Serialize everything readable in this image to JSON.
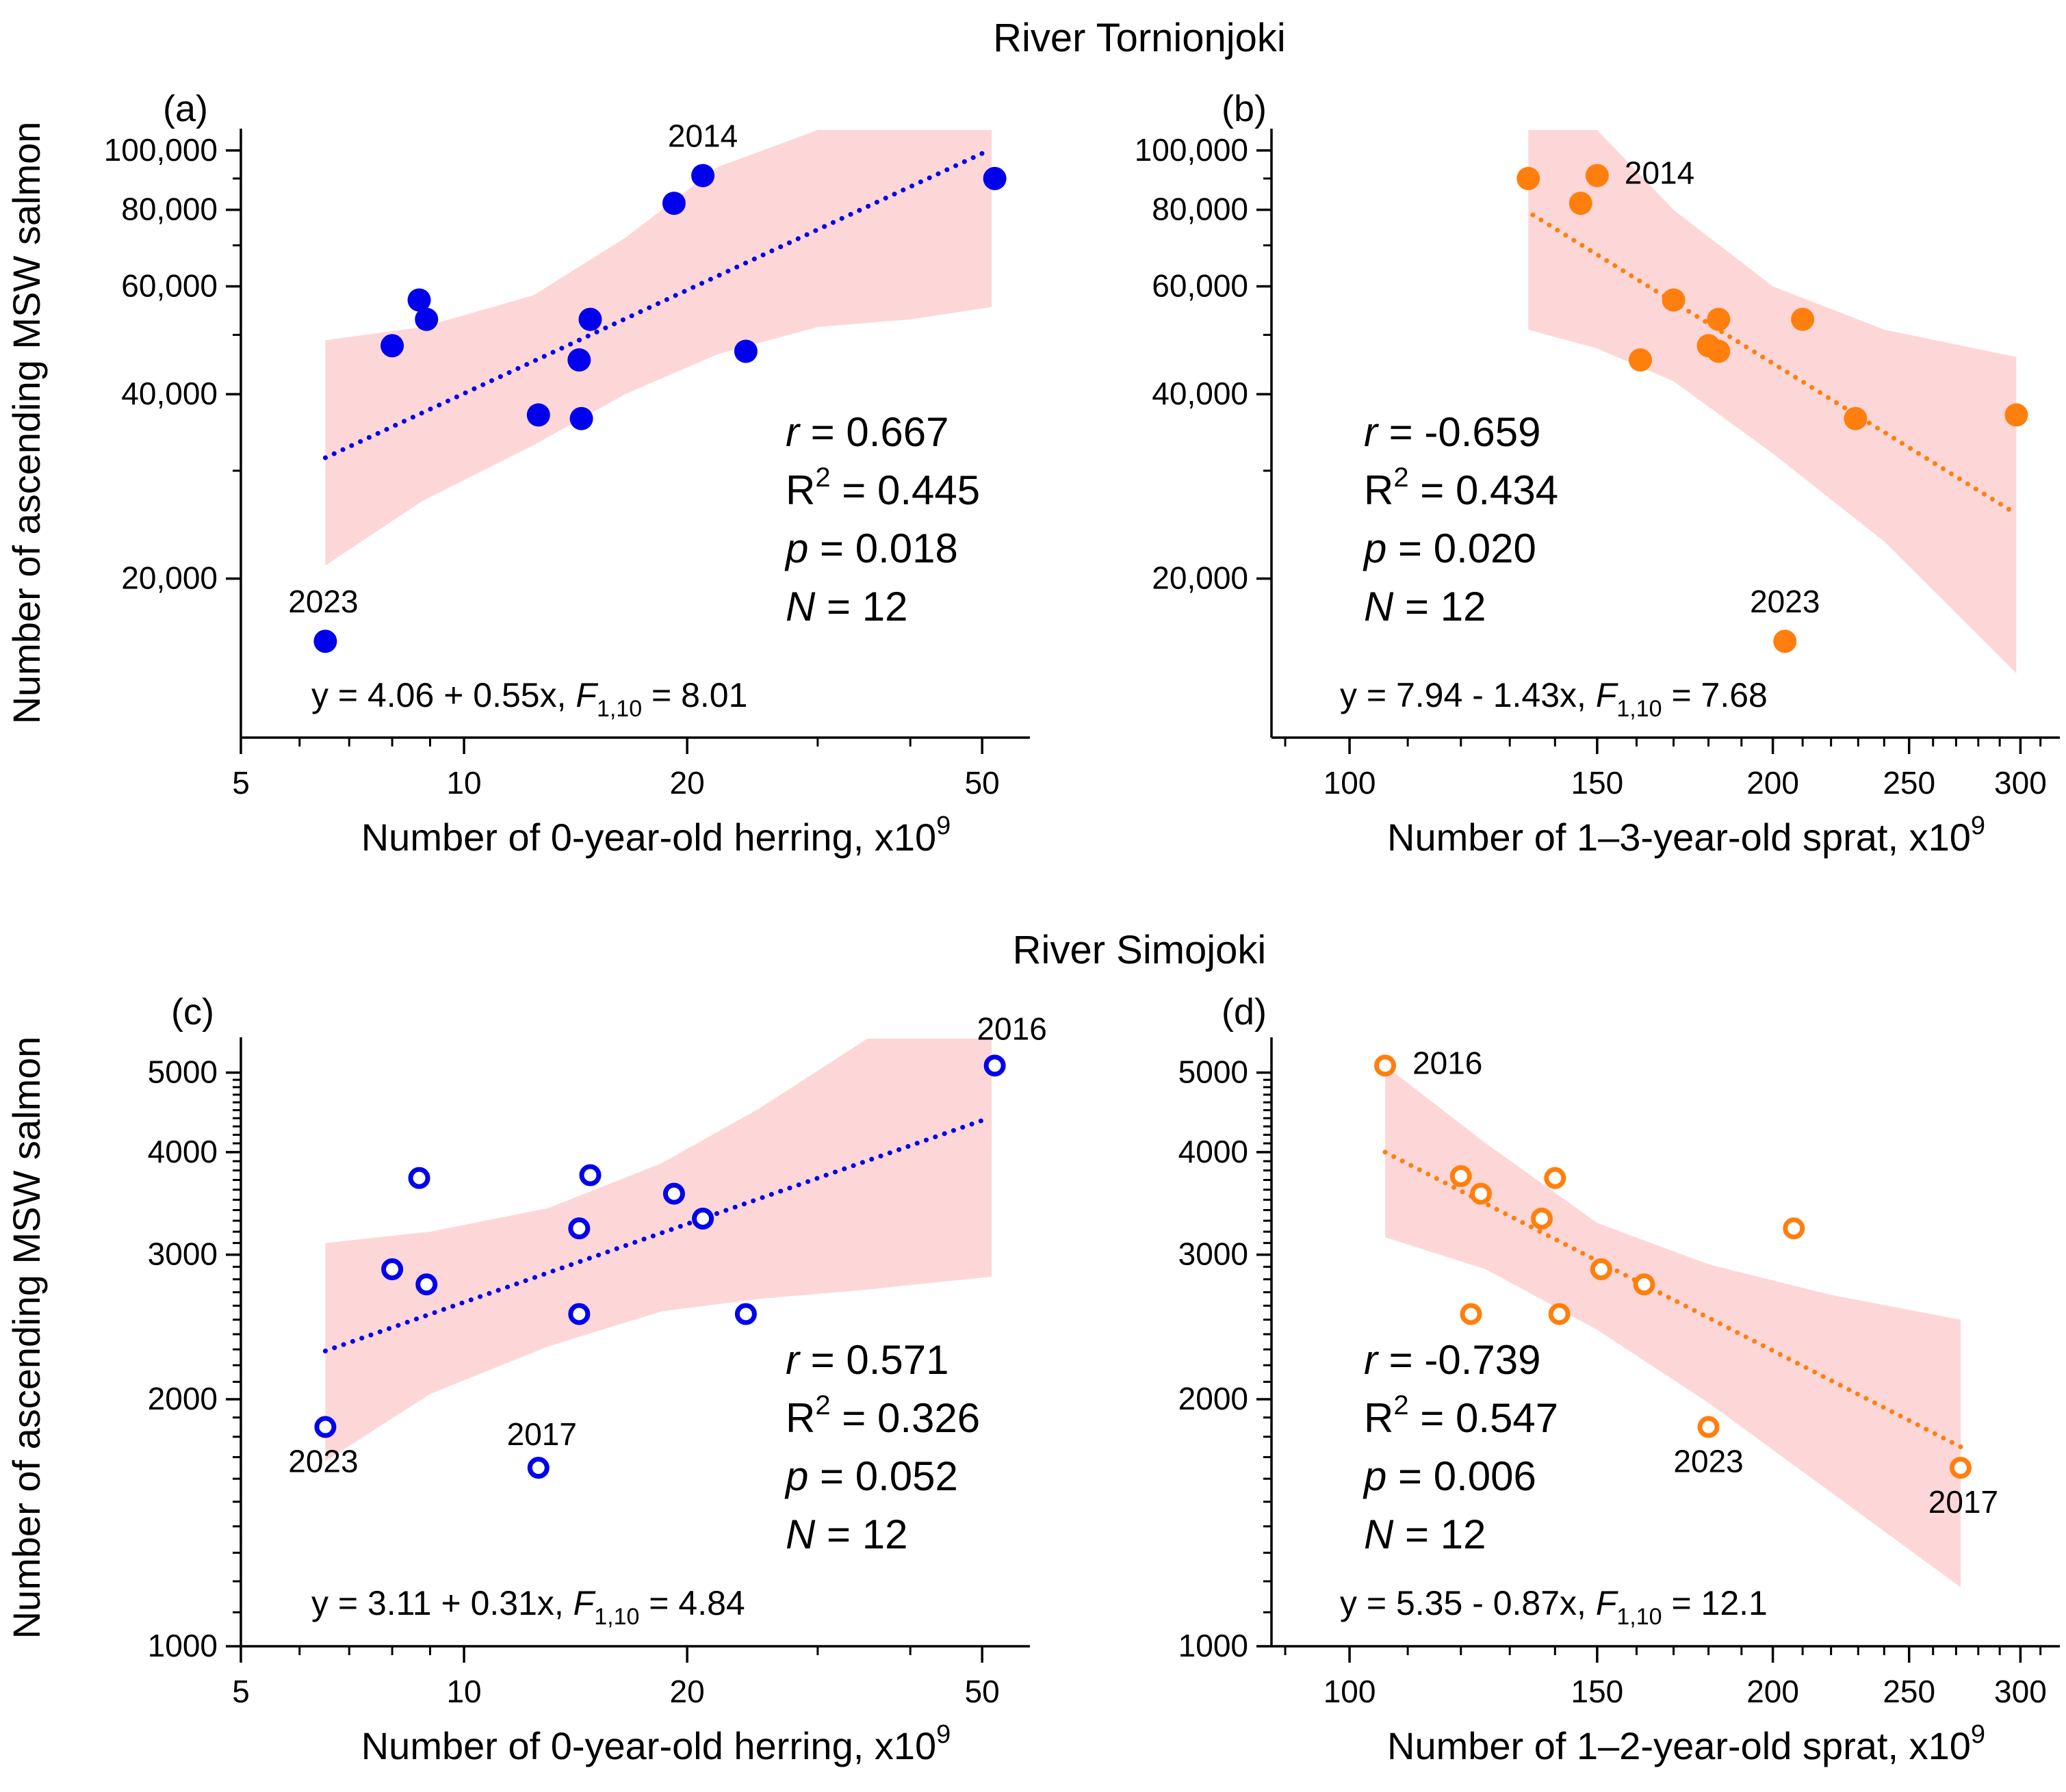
{
  "figure": {
    "title_top": "River Tornionjoki",
    "title_bottom": "River Simojoki",
    "ylabel_top": "Number of ascending MSW salmon",
    "ylabel_bottom": "Number of ascending MSW salmon"
  },
  "colors": {
    "blue": "#0000ee",
    "orange": "#ff7f0e",
    "band": "#fdd7d7"
  },
  "chart_data": [
    {
      "id": "a",
      "panel_label": "(a)",
      "type": "scatter",
      "xlabel": "Number of 0-year-old herring, x10",
      "xlabel_sup": "9",
      "ylabel": "Number of ascending MSW salmon",
      "x_scale": "log",
      "y_scale": "log",
      "xlim": [
        5,
        58
      ],
      "ylim": [
        11000,
        108000
      ],
      "x_ticks": [
        5,
        10,
        20,
        50
      ],
      "x_tick_labels": [
        "5",
        "10",
        "20",
        "50"
      ],
      "y_ticks": [
        20000,
        40000,
        60000,
        80000,
        100000
      ],
      "y_tick_labels": [
        "20,000",
        "40,000",
        "60,000",
        "80,000",
        "100,000"
      ],
      "marker": "filled",
      "color": "#0000ee",
      "points": [
        {
          "x": 6.5,
          "y": 15800,
          "label": "2023"
        },
        {
          "x": 8.0,
          "y": 48000
        },
        {
          "x": 8.7,
          "y": 57000
        },
        {
          "x": 8.9,
          "y": 53000
        },
        {
          "x": 12.6,
          "y": 37000
        },
        {
          "x": 14.3,
          "y": 45500
        },
        {
          "x": 14.4,
          "y": 36500
        },
        {
          "x": 14.8,
          "y": 53000
        },
        {
          "x": 19.2,
          "y": 82000
        },
        {
          "x": 21.0,
          "y": 91000,
          "label": "2014"
        },
        {
          "x": 24.0,
          "y": 47000
        },
        {
          "x": 52.0,
          "y": 90000
        }
      ],
      "fit_line": [
        {
          "x": 6.5,
          "y": 31500
        },
        {
          "x": 51.0,
          "y": 100000
        }
      ],
      "ci_band": {
        "x": [
          6.5,
          8.8,
          12.4,
          16.5,
          22.0,
          30.0,
          40.0,
          51.5
        ],
        "upper": [
          49000,
          51500,
          58000,
          72000,
          94000,
          108000,
          108000,
          108000
        ],
        "lower": [
          21000,
          26800,
          33000,
          40000,
          46500,
          51500,
          53000,
          55500
        ]
      },
      "stats": [
        {
          "var": "r",
          "text": " = 0.667"
        },
        {
          "var": "R",
          "sup": "2",
          "text": " = 0.445"
        },
        {
          "var": "p",
          "text": " = 0.018"
        },
        {
          "var": "N",
          "text": " = 12"
        }
      ],
      "equation": {
        "pre": "y = 4.06 + 0.55x, ",
        "F": "F",
        "sub": "1,10",
        "post": " = 8.01"
      }
    },
    {
      "id": "b",
      "panel_label": "(b)",
      "type": "scatter",
      "xlabel": "Number of 1–3-year-old sprat, x10",
      "xlabel_sup": "9",
      "ylabel": "",
      "x_scale": "log",
      "y_scale": "log",
      "xlim": [
        88,
        320
      ],
      "ylim": [
        11000,
        108000
      ],
      "x_ticks": [
        100,
        150,
        200,
        250,
        300
      ],
      "x_tick_labels": [
        "100",
        "150",
        "200",
        "250",
        "300"
      ],
      "y_ticks": [
        20000,
        40000,
        60000,
        80000,
        100000
      ],
      "y_tick_labels": [
        "20,000",
        "40,000",
        "60,000",
        "80,000",
        "100,000"
      ],
      "marker": "filled",
      "color": "#ff7f0e",
      "points": [
        {
          "x": 134,
          "y": 90000
        },
        {
          "x": 146,
          "y": 82000
        },
        {
          "x": 150,
          "y": 91000,
          "label": "2014"
        },
        {
          "x": 161,
          "y": 45500
        },
        {
          "x": 170,
          "y": 57000
        },
        {
          "x": 180,
          "y": 48000
        },
        {
          "x": 183,
          "y": 47000
        },
        {
          "x": 183,
          "y": 53000
        },
        {
          "x": 204,
          "y": 15800,
          "label": "2023"
        },
        {
          "x": 210,
          "y": 53000
        },
        {
          "x": 229,
          "y": 36500
        },
        {
          "x": 298,
          "y": 37000
        }
      ],
      "fit_line": [
        {
          "x": 135,
          "y": 78500
        },
        {
          "x": 298,
          "y": 25500
        }
      ],
      "ci_band": {
        "x": [
          134,
          150,
          170,
          200,
          240,
          298
        ],
        "upper": [
          108000,
          108000,
          80000,
          60000,
          51000,
          46000
        ],
        "lower": [
          51000,
          47500,
          42000,
          32000,
          23000,
          14000
        ]
      },
      "stats": [
        {
          "var": "r",
          "text": " = -0.659"
        },
        {
          "var": "R",
          "sup": "2",
          "text": " = 0.434"
        },
        {
          "var": "p",
          "text": " = 0.020"
        },
        {
          "var": "N",
          "text": " = 12"
        }
      ],
      "equation": {
        "pre": "y = 7.94 - 1.43x, ",
        "F": "F",
        "sub": "1,10",
        "post": " = 7.68"
      }
    },
    {
      "id": "c",
      "panel_label": "(c)",
      "type": "scatter",
      "xlabel": "Number of 0-year-old herring, x10",
      "xlabel_sup": "9",
      "ylabel": "Number of ascending MSW salmon",
      "x_scale": "log",
      "y_scale": "log",
      "xlim": [
        5,
        58
      ],
      "ylim": [
        1000,
        5500
      ],
      "x_ticks": [
        5,
        10,
        20,
        50
      ],
      "x_tick_labels": [
        "5",
        "10",
        "20",
        "50"
      ],
      "y_ticks": [
        1000,
        2000,
        3000,
        4000,
        5000
      ],
      "y_tick_labels": [
        "1000",
        "2000",
        "3000",
        "4000",
        "5000"
      ],
      "marker": "open",
      "color": "#0000ee",
      "points": [
        {
          "x": 6.5,
          "y": 1850,
          "label": "2023"
        },
        {
          "x": 8.0,
          "y": 2880
        },
        {
          "x": 8.7,
          "y": 3720
        },
        {
          "x": 8.9,
          "y": 2760
        },
        {
          "x": 12.6,
          "y": 1650,
          "label": "2017"
        },
        {
          "x": 14.3,
          "y": 2540
        },
        {
          "x": 14.3,
          "y": 3230
        },
        {
          "x": 14.8,
          "y": 3750
        },
        {
          "x": 19.2,
          "y": 3560
        },
        {
          "x": 21.0,
          "y": 3320
        },
        {
          "x": 24.0,
          "y": 2540
        },
        {
          "x": 52.0,
          "y": 5100,
          "label": "2016"
        }
      ],
      "fit_line": [
        {
          "x": 6.5,
          "y": 2290
        },
        {
          "x": 51.0,
          "y": 4400
        }
      ],
      "ci_band": {
        "x": [
          6.5,
          9.0,
          13.0,
          18.5,
          25.0,
          35.0,
          44.0,
          51.5
        ],
        "upper": [
          3100,
          3200,
          3420,
          3880,
          4520,
          5500,
          5500,
          5500
        ],
        "lower": [
          1680,
          2030,
          2320,
          2560,
          2650,
          2720,
          2780,
          2820
        ]
      },
      "stats": [
        {
          "var": "r",
          "text": " = 0.571"
        },
        {
          "var": "R",
          "sup": "2",
          "text": " = 0.326"
        },
        {
          "var": "p",
          "text": " = 0.052"
        },
        {
          "var": "N",
          "text": " = 12"
        }
      ],
      "equation": {
        "pre": "y = 3.11 + 0.31x, ",
        "F": "F",
        "sub": "1,10",
        "post": " = 4.84"
      }
    },
    {
      "id": "d",
      "panel_label": "(d)",
      "type": "scatter",
      "xlabel": "Number of 1–2-year-old sprat, x10",
      "xlabel_sup": "9",
      "ylabel": "",
      "x_scale": "log",
      "y_scale": "log",
      "xlim": [
        88,
        320
      ],
      "ylim": [
        1000,
        5500
      ],
      "x_ticks": [
        100,
        150,
        200,
        250,
        300
      ],
      "x_tick_labels": [
        "100",
        "150",
        "200",
        "250",
        "300"
      ],
      "y_ticks": [
        1000,
        2000,
        3000,
        4000,
        5000
      ],
      "y_tick_labels": [
        "1000",
        "2000",
        "3000",
        "4000",
        "5000"
      ],
      "marker": "open",
      "color": "#ff7f0e",
      "points": [
        {
          "x": 106,
          "y": 5100,
          "label": "2016"
        },
        {
          "x": 120,
          "y": 3740
        },
        {
          "x": 122,
          "y": 2540
        },
        {
          "x": 124,
          "y": 3560
        },
        {
          "x": 137,
          "y": 3320
        },
        {
          "x": 140,
          "y": 3720
        },
        {
          "x": 141,
          "y": 2540
        },
        {
          "x": 151,
          "y": 2880
        },
        {
          "x": 162,
          "y": 2760
        },
        {
          "x": 180,
          "y": 1850,
          "label": "2023"
        },
        {
          "x": 207,
          "y": 3230
        },
        {
          "x": 272,
          "y": 1650,
          "label": "2017"
        }
      ],
      "fit_line": [
        {
          "x": 106,
          "y": 4000
        },
        {
          "x": 272,
          "y": 1750
        }
      ],
      "ci_band": {
        "x": [
          106,
          125,
          150,
          180,
          220,
          272
        ],
        "upper": [
          5100,
          4100,
          3280,
          2920,
          2680,
          2500
        ],
        "lower": [
          3150,
          2880,
          2430,
          1980,
          1540,
          1180
        ]
      },
      "stats": [
        {
          "var": "r",
          "text": " = -0.739"
        },
        {
          "var": "R",
          "sup": "2",
          "text": " = 0.547"
        },
        {
          "var": "p",
          "text": " = 0.006"
        },
        {
          "var": "N",
          "text": " = 12"
        }
      ],
      "equation": {
        "pre": "y = 5.35 - 0.87x, ",
        "F": "F",
        "sub": "1,10",
        "post": " = 12.1"
      }
    }
  ]
}
